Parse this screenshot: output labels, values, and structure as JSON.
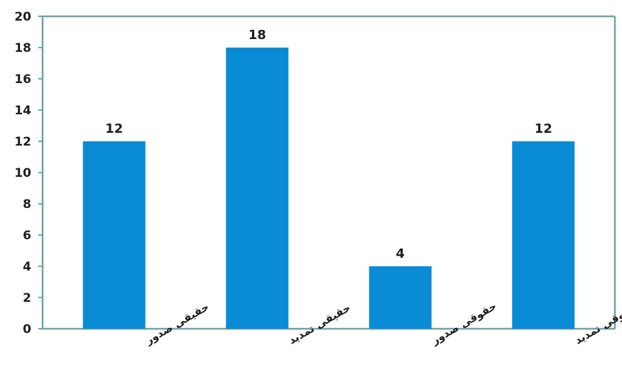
{
  "chart_data": {
    "type": "bar",
    "categories": [
      "حقیقی صدور",
      "حقیقی تمدید",
      "حقوقی صدور",
      "حقوقی تمدید"
    ],
    "values": [
      12,
      18,
      4,
      12
    ],
    "data_labels": [
      "12",
      "18",
      "4",
      "12"
    ],
    "title": "",
    "xlabel": "",
    "ylabel": "",
    "ylim": [
      0,
      20
    ],
    "yticks": [
      0,
      2,
      4,
      6,
      8,
      10,
      12,
      14,
      16,
      18,
      20
    ],
    "grid": false,
    "legend": "none",
    "colors": {
      "bar": "#0a8bd6",
      "axis": "#6ea3ad",
      "text": "#1e1e1e"
    }
  }
}
